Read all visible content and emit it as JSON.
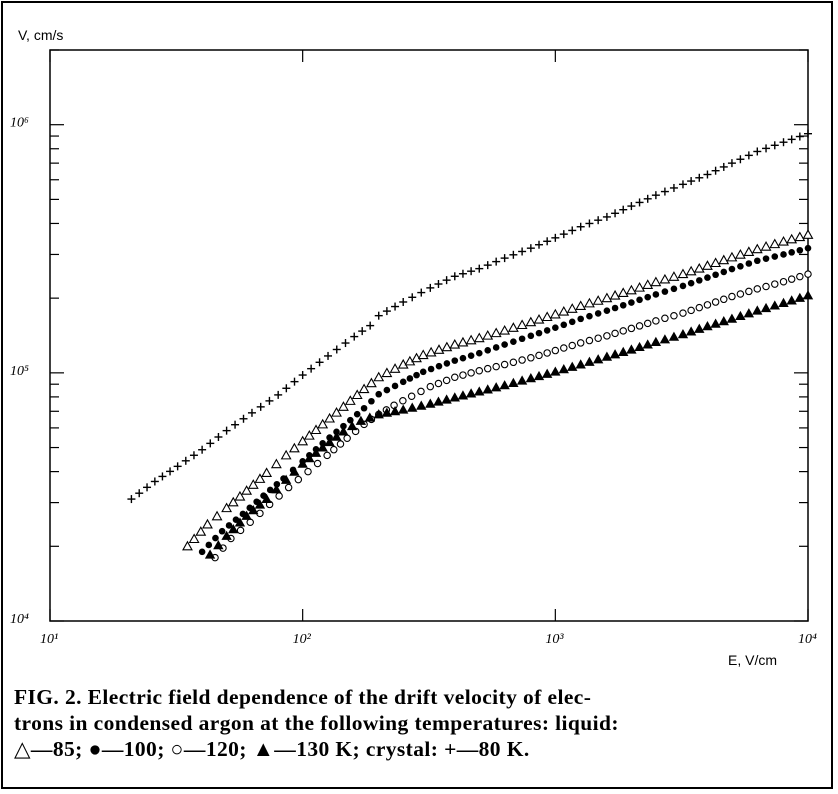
{
  "chart_data": {
    "type": "scatter",
    "title": "",
    "xlabel": "E, V/cm",
    "ylabel": "V, cm/s",
    "xscale": "log",
    "yscale": "log",
    "xlim": [
      10,
      10000
    ],
    "ylim": [
      10000,
      2000000
    ],
    "grid": false,
    "legend": "none",
    "x_ticks": [
      {
        "value": 10,
        "label": "10¹"
      },
      {
        "value": 100,
        "label": "10²"
      },
      {
        "value": 1000,
        "label": "10³"
      },
      {
        "value": 10000,
        "label": "10⁴"
      }
    ],
    "y_ticks": [
      {
        "value": 10000,
        "label": "10⁴"
      },
      {
        "value": 100000,
        "label": "10⁵"
      },
      {
        "value": 1000000,
        "label": "10⁶"
      }
    ],
    "series": [
      {
        "name": "+—80 K",
        "marker": "plus",
        "x": [
          21,
          26,
          32,
          40,
          50,
          63,
          80,
          100,
          126,
          160,
          185,
          200,
          250,
          320,
          400,
          500,
          630,
          800,
          1000,
          1260,
          1600,
          2000,
          2500,
          3200,
          4000,
          5000,
          6300,
          8000,
          10000
        ],
        "y": [
          31000,
          36500,
          42000,
          49000,
          58500,
          69000,
          81500,
          98000,
          117000,
          140000,
          155000,
          170000,
          193000,
          220000,
          245000,
          263000,
          290000,
          318000,
          350000,
          388000,
          425000,
          470000,
          520000,
          575000,
          630000,
          700000,
          780000,
          850000,
          920000
        ]
      },
      {
        "name": "△—85",
        "marker": "triangle-open",
        "x": [
          35,
          42,
          50,
          60,
          72,
          86,
          100,
          120,
          145,
          175,
          200,
          250,
          300,
          400,
          500,
          630,
          800,
          1000,
          1260,
          1600,
          2000,
          2500,
          3200,
          4000,
          5000,
          6300,
          8000,
          10000
        ],
        "y": [
          20000,
          24500,
          28500,
          33500,
          39500,
          46500,
          53000,
          62000,
          73000,
          86000,
          96000,
          108000,
          118000,
          130000,
          138000,
          148000,
          160000,
          172000,
          186000,
          200000,
          215000,
          232000,
          250000,
          270000,
          292000,
          315000,
          338000,
          360000
        ]
      },
      {
        "name": "●—100",
        "marker": "circle-filled",
        "x": [
          40,
          48,
          58,
          70,
          84,
          100,
          120,
          145,
          175,
          200,
          250,
          300,
          400,
          500,
          630,
          800,
          1000,
          1260,
          1600,
          2000,
          2500,
          3200,
          4000,
          5000,
          6300,
          8000,
          10000
        ],
        "y": [
          19000,
          23000,
          27000,
          32000,
          37500,
          44000,
          52000,
          61000,
          72000,
          82000,
          92000,
          101000,
          112000,
          120000,
          130000,
          141000,
          152000,
          165000,
          178000,
          192000,
          207000,
          224000,
          242000,
          262000,
          283000,
          300000,
          318000
        ]
      },
      {
        "name": "○—120",
        "marker": "circle-open",
        "x": [
          45,
          52,
          62,
          74,
          88,
          105,
          125,
          150,
          175,
          200,
          230,
          270,
          320,
          400,
          500,
          630,
          800,
          1000,
          1260,
          1600,
          2000,
          2500,
          3200,
          4000,
          5000,
          6300,
          8000,
          10000
        ],
        "y": [
          18000,
          21500,
          25000,
          29500,
          34500,
          40000,
          46500,
          54500,
          62000,
          68000,
          74000,
          80500,
          88000,
          96000,
          102000,
          108000,
          115000,
          123000,
          132000,
          141000,
          151000,
          162000,
          174000,
          188000,
          203000,
          218000,
          233000,
          250000
        ]
      },
      {
        "name": "▲—130 K",
        "marker": "triangle-filled",
        "x": [
          43,
          50,
          60,
          72,
          86,
          100,
          120,
          145,
          170,
          200,
          250,
          320,
          400,
          500,
          630,
          800,
          1000,
          1260,
          1600,
          2000,
          2500,
          3200,
          4000,
          5000,
          6300,
          8000,
          10000
        ],
        "y": [
          18500,
          22000,
          26500,
          31000,
          37000,
          43000,
          50000,
          58000,
          64000,
          68000,
          71000,
          75000,
          79500,
          84000,
          89000,
          95000,
          101000,
          108000,
          116000,
          124000,
          133000,
          143000,
          154000,
          165000,
          178000,
          191000,
          205000
        ]
      }
    ]
  },
  "caption": {
    "line1": "FIG. 2.  Electric field dependence of the drift velocity of elec-",
    "line2": "trons in condensed argon at the following temperatures:  liquid:",
    "line3": "△—85;  ●—100;  ○—120;  ▲—130 K; crystal:  +—80 K."
  }
}
